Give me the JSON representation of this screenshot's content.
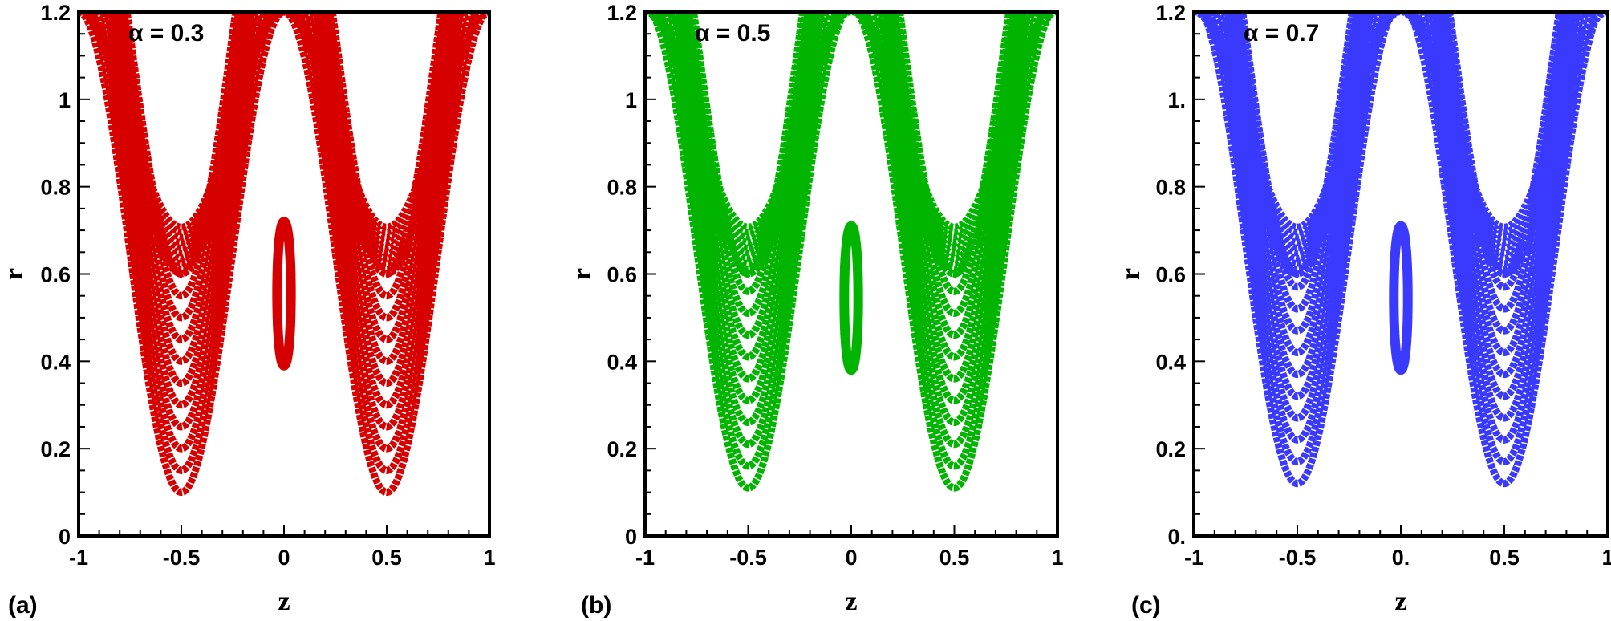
{
  "chart_data": [
    {
      "type": "scatter",
      "panel": "(a)",
      "annotation": "α = 0.3",
      "color": "#d60000",
      "xlabel": "z",
      "ylabel": "r",
      "xlim": [
        -1,
        1
      ],
      "ylim": [
        0,
        1.2
      ],
      "x_ticks": [
        "-1",
        "-0.5",
        "0",
        "0.5",
        "1"
      ],
      "y_ticks": [
        "0",
        "0.2",
        "0.4",
        "0.6",
        "0.8",
        "1",
        "1.2"
      ],
      "grid": false,
      "curve_family": {
        "description_values": "r = r0 + A(1 - cos(2*pi*z)) style streamlines",
        "valley_minima_at_z_minus_0_5": [
          0.1,
          0.15,
          0.2,
          0.25,
          0.3,
          0.35,
          0.4,
          0.45,
          0.5,
          0.55,
          0.6
        ],
        "central_loop_r_range": [
          0.39,
          0.72
        ],
        "peak_r": 1.19
      }
    },
    {
      "type": "scatter",
      "panel": "(b)",
      "annotation": "α = 0.5",
      "color": "#00b400",
      "xlabel": "z",
      "ylabel": "r",
      "xlim": [
        -1,
        1
      ],
      "ylim": [
        0,
        1.2
      ],
      "x_ticks": [
        "-1",
        "-0.5",
        "0",
        "0.5",
        "1"
      ],
      "y_ticks": [
        "0",
        "0.2",
        "0.4",
        "0.6",
        "0.8",
        "1",
        "1.2"
      ],
      "grid": false,
      "curve_family": {
        "description_values": "r = r0 + A(1 - cos(2*pi*z)) style streamlines",
        "valley_minima_at_z_minus_0_5": [
          0.11,
          0.16,
          0.21,
          0.26,
          0.31,
          0.36,
          0.41,
          0.46,
          0.51,
          0.56,
          0.6
        ],
        "central_loop_r_range": [
          0.38,
          0.71
        ],
        "peak_r": 1.19
      }
    },
    {
      "type": "scatter",
      "panel": "(c)",
      "annotation": "α = 0.7",
      "color": "#3a3aff",
      "xlabel": "z",
      "ylabel": "r",
      "xlim": [
        -1,
        1
      ],
      "ylim": [
        0,
        1.2
      ],
      "x_ticks": [
        "-1",
        "-0.5",
        "0.",
        "0.5",
        "1"
      ],
      "y_ticks": [
        "0.",
        "0.2",
        "0.4",
        "0.6",
        "0.8",
        "1.",
        "1.2"
      ],
      "grid": false,
      "curve_family": {
        "description_values": "r = r0 + A(1 - cos(2*pi*z)) style streamlines",
        "valley_minima_at_z_minus_0_5": [
          0.12,
          0.17,
          0.22,
          0.27,
          0.32,
          0.37,
          0.42,
          0.47,
          0.52,
          0.57,
          0.6
        ],
        "central_loop_r_range": [
          0.38,
          0.71
        ],
        "peak_r": 1.19
      }
    }
  ]
}
